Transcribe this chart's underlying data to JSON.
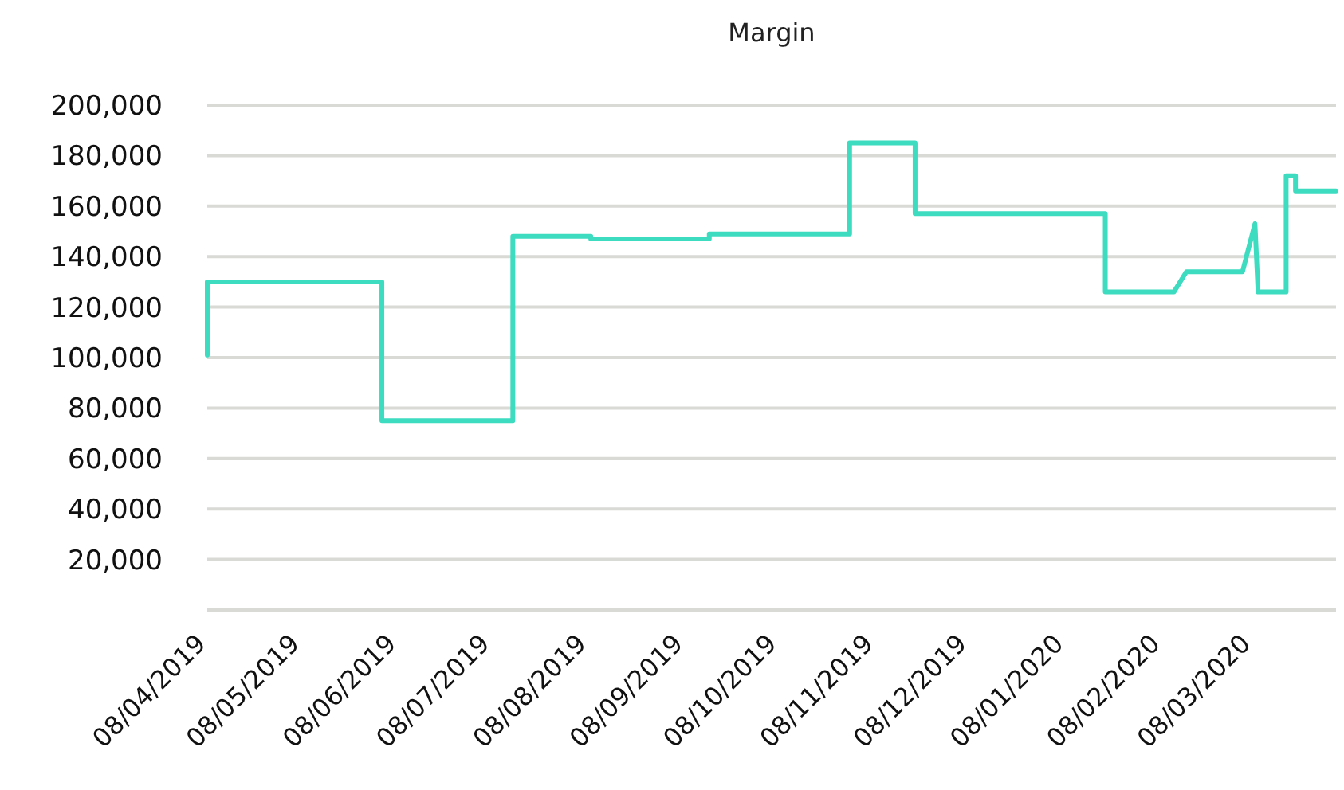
{
  "chart_data": {
    "type": "line",
    "title": "Margin",
    "x": [
      "2019-04-08",
      "2019-04-08",
      "2019-06-03",
      "2019-06-03",
      "2019-07-15",
      "2019-07-15",
      "2019-08-09",
      "2019-08-09",
      "2019-09-16",
      "2019-09-16",
      "2019-10-31",
      "2019-10-31",
      "2019-11-21",
      "2019-11-21",
      "2020-01-21",
      "2020-01-21",
      "2020-02-12",
      "2020-02-16",
      "2020-03-05",
      "2020-03-09",
      "2020-03-10",
      "2020-03-19",
      "2020-03-19",
      "2020-03-22",
      "2020-03-22",
      "2020-04-04"
    ],
    "series": [
      {
        "color": "#3ddbc0",
        "values": [
          101000,
          130000,
          130000,
          75000,
          75000,
          148000,
          148000,
          147000,
          147000,
          149000,
          149000,
          185000,
          185000,
          157000,
          157000,
          126000,
          126000,
          134000,
          134000,
          153000,
          126000,
          126000,
          172000,
          172000,
          166000,
          166000
        ]
      }
    ],
    "xlim": [
      "2019-04-08",
      "2020-04-04"
    ],
    "xticks": [
      {
        "value": "2019-04-08",
        "label": "08/04/2019"
      },
      {
        "value": "2019-05-08",
        "label": "08/05/2019"
      },
      {
        "value": "2019-06-08",
        "label": "08/06/2019"
      },
      {
        "value": "2019-07-08",
        "label": "08/07/2019"
      },
      {
        "value": "2019-08-08",
        "label": "08/08/2019"
      },
      {
        "value": "2019-09-08",
        "label": "08/09/2019"
      },
      {
        "value": "2019-10-08",
        "label": "08/10/2019"
      },
      {
        "value": "2019-11-08",
        "label": "08/11/2019"
      },
      {
        "value": "2019-12-08",
        "label": "08/12/2019"
      },
      {
        "value": "2020-01-08",
        "label": "08/01/2020"
      },
      {
        "value": "2020-02-08",
        "label": "08/02/2020"
      },
      {
        "value": "2020-03-08",
        "label": "08/03/2020"
      }
    ],
    "ylim": [
      0,
      200000
    ],
    "yticks": [
      {
        "value": 0,
        "label": null
      },
      {
        "value": 20000,
        "label": "20,000"
      },
      {
        "value": 40000,
        "label": "40,000"
      },
      {
        "value": 60000,
        "label": "60,000"
      },
      {
        "value": 80000,
        "label": "80,000"
      },
      {
        "value": 100000,
        "label": "100,000"
      },
      {
        "value": 120000,
        "label": "120,000"
      },
      {
        "value": 140000,
        "label": "140,000"
      },
      {
        "value": 160000,
        "label": "160,000"
      },
      {
        "value": 180000,
        "label": "180,000"
      },
      {
        "value": 200000,
        "label": "200,000"
      }
    ],
    "grid": "y",
    "marker": "none",
    "line_style": "solid"
  }
}
